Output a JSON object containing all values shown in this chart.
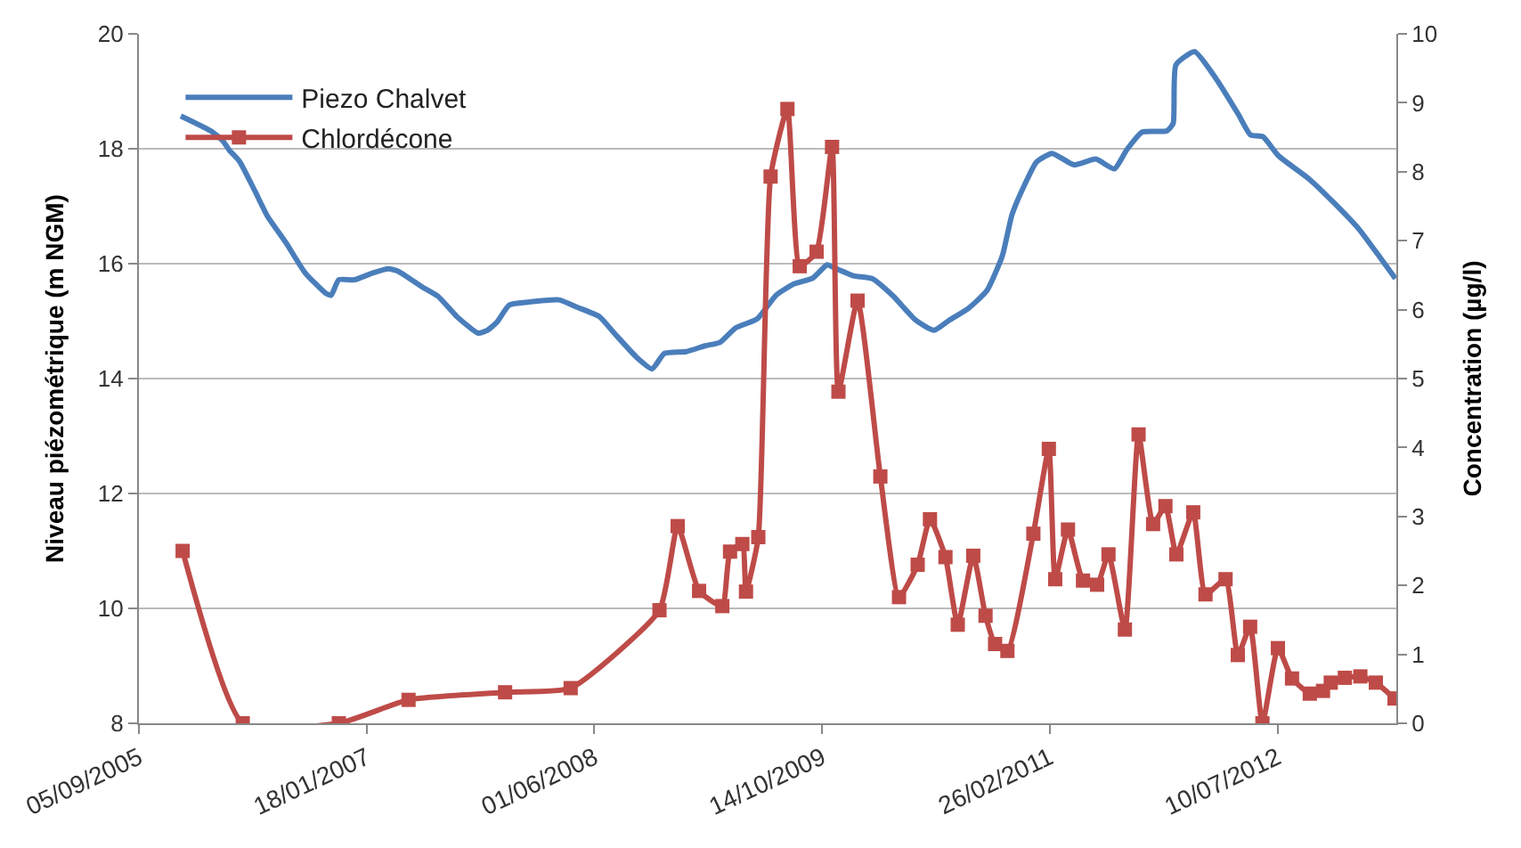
{
  "chart_data": {
    "type": "line",
    "ylabel": "Niveau piézométrique (m NGM)",
    "y2label": "Concentration (µg/l)",
    "xlim": [
      "2005-09-05",
      "2013-03-28"
    ],
    "xticks": [
      {
        "value": "2005-09-05",
        "label": "05/09/2005"
      },
      {
        "value": "2007-01-18",
        "label": "18/01/2007"
      },
      {
        "value": "2008-06-01",
        "label": "01/06/2008"
      },
      {
        "value": "2009-10-14",
        "label": "14/10/2009"
      },
      {
        "value": "2011-02-26",
        "label": "26/02/2011"
      },
      {
        "value": "2012-07-10",
        "label": "10/07/2012"
      }
    ],
    "ylim": [
      8,
      20
    ],
    "yticks": [
      8,
      10,
      12,
      14,
      16,
      18,
      20
    ],
    "y2lim": [
      0,
      10
    ],
    "y2ticks": [
      0,
      1,
      2,
      3,
      4,
      5,
      6,
      7,
      8,
      9,
      10
    ],
    "grid": "y",
    "legend": "top left",
    "series": [
      {
        "name": "Piezo Chalvet",
        "color": "#4a7ebb",
        "marker": "none",
        "x": [
          "2005-12-06",
          "2006-02-12",
          "2006-03-08",
          "2006-03-22",
          "2006-04-14",
          "2006-05-18",
          "2006-06-14",
          "2006-07-26",
          "2006-09-05",
          "2006-10-21",
          "2006-11-01",
          "2006-11-18",
          "2006-12-22",
          "2007-02-01",
          "2007-03-07",
          "2007-03-28",
          "2007-05-21",
          "2007-06-24",
          "2007-08-04",
          "2007-09-20",
          "2007-10-10",
          "2007-10-31",
          "2007-11-27",
          "2008-01-07",
          "2008-03-15",
          "2008-04-25",
          "2008-06-12",
          "2008-07-16",
          "2008-09-02",
          "2008-10-06",
          "2008-11-02",
          "2008-12-20",
          "2009-01-30",
          "2009-03-04",
          "2009-04-07",
          "2009-05-25",
          "2009-07-05",
          "2009-08-14",
          "2009-09-24",
          "2009-10-25",
          "2009-11-04",
          "2009-12-22",
          "2010-02-01",
          "2010-03-20",
          "2010-05-07",
          "2010-06-17",
          "2010-07-21",
          "2010-08-31",
          "2010-10-11",
          "2010-11-14",
          "2010-12-05",
          "2011-01-01",
          "2011-01-28",
          "2011-03-03",
          "2011-04-20",
          "2011-06-07",
          "2011-07-18",
          "2011-08-14",
          "2011-09-17",
          "2011-11-10",
          "2011-11-24",
          "2011-11-30",
          "2012-01-10",
          "2012-02-27",
          "2012-04-15",
          "2012-05-12",
          "2012-06-08",
          "2012-07-12",
          "2012-09-18",
          "2012-11-11",
          "2013-01-04",
          "2013-02-21",
          "2013-03-26"
        ],
        "values": [
          18.57,
          18.3,
          18.14,
          17.98,
          17.78,
          17.26,
          16.83,
          16.35,
          15.84,
          15.48,
          15.45,
          15.72,
          15.72,
          15.84,
          15.91,
          15.87,
          15.59,
          15.43,
          15.08,
          14.79,
          14.84,
          14.98,
          15.28,
          15.33,
          15.37,
          15.24,
          15.08,
          14.78,
          14.37,
          14.17,
          14.44,
          14.47,
          14.57,
          14.63,
          14.88,
          15.04,
          15.45,
          15.65,
          15.75,
          15.98,
          15.95,
          15.79,
          15.74,
          15.43,
          15.02,
          14.84,
          15.02,
          15.22,
          15.53,
          16.14,
          16.85,
          17.36,
          17.77,
          17.92,
          17.72,
          17.82,
          17.65,
          17.98,
          18.29,
          18.31,
          18.44,
          19.46,
          19.69,
          19.21,
          18.6,
          18.24,
          18.21,
          17.88,
          17.47,
          17.06,
          16.61,
          16.1,
          15.74
        ]
      },
      {
        "name": "Chlordécone",
        "color": "#be4b48",
        "marker": "square",
        "axis": "y2",
        "x": [
          "2005-12-10",
          "2006-04-21",
          "2006-11-18",
          "2007-04-20",
          "2007-11-18",
          "2008-04-10",
          "2008-10-22",
          "2008-12-01",
          "2009-01-17",
          "2009-03-09",
          "2009-03-26",
          "2009-04-22",
          "2009-04-30",
          "2009-05-27",
          "2009-06-23",
          "2009-07-30",
          "2009-08-26",
          "2009-10-02",
          "2009-11-05",
          "2009-11-19",
          "2009-12-31",
          "2010-02-19",
          "2010-04-01",
          "2010-05-12",
          "2010-06-08",
          "2010-07-12",
          "2010-08-08",
          "2010-09-11",
          "2010-10-08",
          "2010-10-29",
          "2010-11-25",
          "2011-01-21",
          "2011-02-24",
          "2011-03-10",
          "2011-04-07",
          "2011-05-10",
          "2011-06-10",
          "2011-07-05",
          "2011-08-10",
          "2011-09-09",
          "2011-10-11",
          "2011-11-07",
          "2011-12-01",
          "2012-01-07",
          "2012-02-03",
          "2012-03-18",
          "2012-04-14",
          "2012-05-11",
          "2012-06-07",
          "2012-07-11",
          "2012-08-11",
          "2012-09-19",
          "2012-10-18",
          "2012-11-04",
          "2012-12-05",
          "2013-01-08",
          "2013-02-11",
          "2013-03-24"
        ],
        "values": [
          2.5,
          0,
          0,
          0.34,
          0.45,
          0.51,
          1.64,
          2.86,
          1.92,
          1.7,
          2.49,
          2.6,
          1.91,
          2.7,
          7.93,
          8.91,
          6.63,
          6.84,
          8.36,
          4.81,
          6.13,
          3.58,
          1.83,
          2.3,
          2.96,
          2.41,
          1.43,
          2.43,
          1.56,
          1.15,
          1.05,
          2.75,
          3.98,
          2.09,
          2.81,
          2.07,
          2.01,
          2.45,
          1.36,
          4.19,
          2.89,
          3.15,
          2.45,
          3.06,
          1.87,
          2.09,
          0.99,
          1.4,
          0,
          1.09,
          0.65,
          0.43,
          0.47,
          0.59,
          0.66,
          0.68,
          0.59,
          0.36
        ]
      }
    ]
  }
}
